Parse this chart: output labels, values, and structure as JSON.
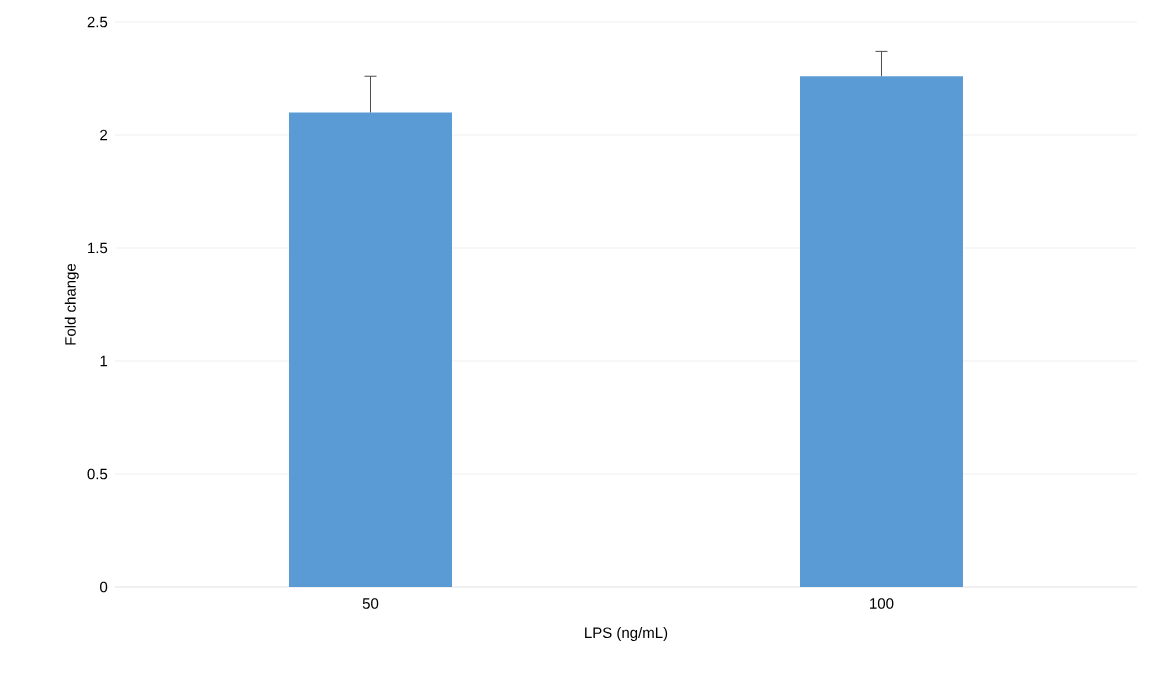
{
  "chart_data": {
    "type": "bar",
    "xlabel": "LPS (ng/mL)",
    "ylabel": "Fold change",
    "categories": [
      "50",
      "100"
    ],
    "values": [
      2.1,
      2.26
    ],
    "errors": [
      [
        2.1,
        2.26
      ],
      [
        2.26,
        2.37
      ]
    ],
    "color": "#5b9bd5",
    "ylim": [
      0,
      2.5
    ],
    "yticks": [
      0,
      0.5,
      1,
      1.5,
      2,
      2.5
    ],
    "grid": "y"
  }
}
